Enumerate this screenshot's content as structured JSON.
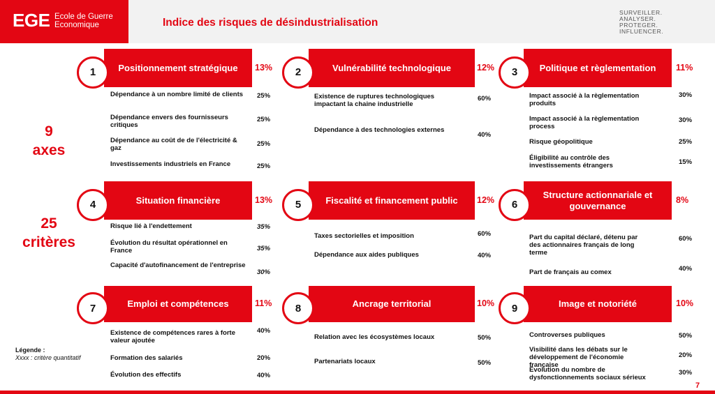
{
  "header": {
    "logo_mark": "EGE",
    "logo_line1": "Ecole de Guerre",
    "logo_line2": "Economique",
    "title": "Indice des risques de désindustrialisation",
    "tagline": [
      "SURVEILLER.",
      "ANALYSER.",
      "PROTEGER.",
      "INFLUENCER."
    ]
  },
  "side": {
    "axes_num": "9",
    "axes_label": "axes",
    "criteres_num": "25",
    "criteres_label": "critères"
  },
  "legend": {
    "title": "Légende :",
    "item": "Xxxx : critère quantitatif"
  },
  "page_number": "7",
  "axes": [
    {
      "num": "1",
      "title": "Positionnement stratégique",
      "weight": "13%",
      "criteria": [
        {
          "label": "Dépendance à un nombre limité de clients",
          "value": "25%",
          "quant": false
        },
        {
          "label": "Dépendance envers des fournisseurs critiques",
          "value": "25%",
          "quant": false
        },
        {
          "label": "Dépendance au coût de de l'électricité & gaz",
          "value": "25%",
          "quant": false
        },
        {
          "label": "Investissements industriels en France",
          "value": "25%",
          "quant": false
        }
      ]
    },
    {
      "num": "2",
      "title": "Vulnérabilité technologique",
      "weight": "12%",
      "criteria": [
        {
          "label": "Existence de ruptures technologiques impactant la chaine industrielle",
          "value": "60%",
          "quant": false
        },
        {
          "label": "Dépendance à des technologies externes",
          "value": "40%",
          "quant": false
        }
      ]
    },
    {
      "num": "3",
      "title": "Politique et règlementation",
      "weight": "11%",
      "criteria": [
        {
          "label": "Impact associé à la règlementation produits",
          "value": "30%",
          "quant": false
        },
        {
          "label": "Impact associé à la règlementation process",
          "value": "30%",
          "quant": false
        },
        {
          "label": "Risque géopolitique",
          "value": "25%",
          "quant": false
        },
        {
          "label": "Éligibilité au contrôle des investissements étrangers",
          "value": "15%",
          "quant": false
        }
      ]
    },
    {
      "num": "4",
      "title": "Situation financière",
      "weight": "13%",
      "criteria": [
        {
          "label": "Risque lié à l'endettement",
          "value": "35%",
          "quant": true
        },
        {
          "label": "Évolution du résultat opérationnel en France",
          "value": "35%",
          "quant": true
        },
        {
          "label": "Capacité d'autofinancement de l'entreprise",
          "value": "30%",
          "quant": true
        }
      ]
    },
    {
      "num": "5",
      "title": "Fiscalité et financement public",
      "weight": "12%",
      "criteria": [
        {
          "label": "Taxes sectorielles et imposition",
          "value": "60%",
          "quant": false
        },
        {
          "label": "Dépendance aux aides publiques",
          "value": "40%",
          "quant": false
        }
      ]
    },
    {
      "num": "6",
      "title": "Structure actionnariale et gouvernance",
      "weight": "8%",
      "criteria": [
        {
          "label": "Part du capital déclaré, détenu par des actionnaires français de long terme",
          "value": "60%",
          "quant": false
        },
        {
          "label": "Part de français au comex",
          "value": "40%",
          "quant": false
        }
      ]
    },
    {
      "num": "7",
      "title": "Emploi et compétences",
      "weight": "11%",
      "criteria": [
        {
          "label": "Existence de compétences rares à forte valeur ajoutée",
          "value": "40%",
          "quant": false
        },
        {
          "label": "Formation des salariés",
          "value": "20%",
          "quant": false
        },
        {
          "label": "Évolution des effectifs",
          "value": "40%",
          "quant": false
        }
      ]
    },
    {
      "num": "8",
      "title": "Ancrage territorial",
      "weight": "10%",
      "criteria": [
        {
          "label": "Relation avec les écosystèmes locaux",
          "value": "50%",
          "quant": false
        },
        {
          "label": "Partenariats locaux",
          "value": "50%",
          "quant": false
        }
      ]
    },
    {
      "num": "9",
      "title": "Image et notoriété",
      "weight": "10%",
      "criteria": [
        {
          "label": "Controverses publiques",
          "value": "50%",
          "quant": false
        },
        {
          "label": "Visibilité dans les débats sur le développement de l'économie française",
          "value": "20%",
          "quant": false
        },
        {
          "label": "Évolution du nombre de dysfonctionnements sociaux sérieux",
          "value": "30%",
          "quant": false
        }
      ]
    }
  ]
}
